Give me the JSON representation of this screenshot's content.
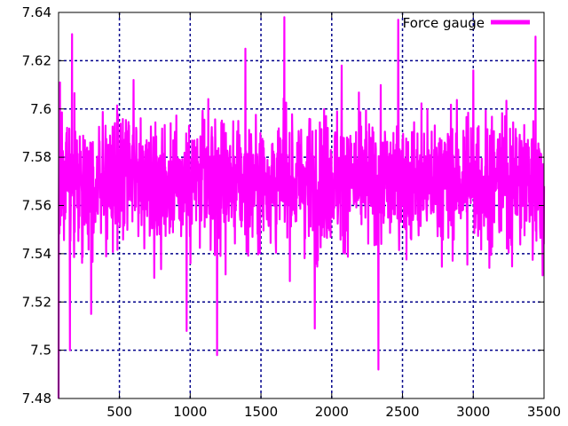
{
  "chart_data": {
    "type": "line",
    "title": "",
    "xlabel": "",
    "ylabel": "",
    "xlim": [
      70,
      3500
    ],
    "ylim": [
      7.48,
      7.64
    ],
    "xticks": [
      500,
      1000,
      1500,
      2000,
      2500,
      3000,
      3500
    ],
    "yticks": [
      7.48,
      7.5,
      7.52,
      7.54,
      7.56,
      7.58,
      7.6,
      7.62,
      7.64
    ],
    "xtick_labels": [
      "500",
      "1000",
      "1500",
      "2000",
      "2500",
      "3000",
      "3500"
    ],
    "ytick_labels": [
      "7.48",
      "7.5",
      "7.52",
      "7.54",
      "7.56",
      "7.58",
      "7.6",
      "7.62",
      "7.64"
    ],
    "grid": true,
    "grid_style": "dashed",
    "grid_color": "#00008b",
    "legend_position": "top-right",
    "series": [
      {
        "name": "Force gauge",
        "color": "#ff00ff",
        "summary": {
          "x_start": 70,
          "x_end": 3500,
          "mean": 7.57,
          "typical_low": 7.54,
          "typical_high": 7.6,
          "min": 7.48,
          "max": 7.638
        },
        "extremes": [
          {
            "x": 70,
            "y": 7.48
          },
          {
            "x": 75,
            "y": 7.596
          },
          {
            "x": 80,
            "y": 7.611
          },
          {
            "x": 150,
            "y": 7.5
          },
          {
            "x": 165,
            "y": 7.631
          },
          {
            "x": 300,
            "y": 7.515
          },
          {
            "x": 600,
            "y": 7.612
          },
          {
            "x": 975,
            "y": 7.508
          },
          {
            "x": 1190,
            "y": 7.498
          },
          {
            "x": 1390,
            "y": 7.625
          },
          {
            "x": 1665,
            "y": 7.638
          },
          {
            "x": 1880,
            "y": 7.509
          },
          {
            "x": 2070,
            "y": 7.618
          },
          {
            "x": 2330,
            "y": 7.492
          },
          {
            "x": 2470,
            "y": 7.637
          },
          {
            "x": 3000,
            "y": 7.616
          },
          {
            "x": 3440,
            "y": 7.63
          },
          {
            "x": 3490,
            "y": 7.531
          },
          {
            "x": 3500,
            "y": 7.568
          }
        ]
      }
    ]
  }
}
